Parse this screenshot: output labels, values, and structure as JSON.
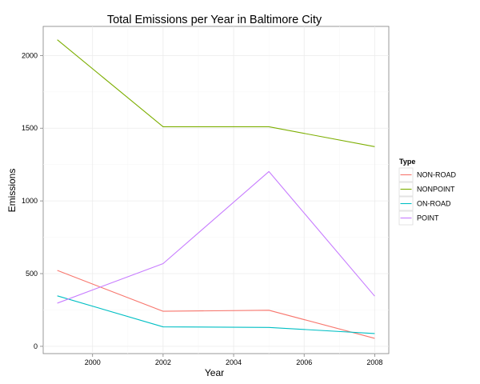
{
  "chart_data": {
    "type": "line",
    "title": "Total Emissions per Year in Baltimore City",
    "xlabel": "Year",
    "ylabel": "Emissions",
    "x": [
      1999,
      2002,
      2005,
      2008
    ],
    "xlim": [
      1998.6,
      2008.4
    ],
    "ylim": [
      -50,
      2200
    ],
    "x_ticks": [
      2000,
      2002,
      2004,
      2006,
      2008
    ],
    "y_ticks": [
      0,
      500,
      1000,
      1500,
      2000
    ],
    "grid": true,
    "legend": {
      "title": "Type",
      "placement": "right"
    },
    "series": [
      {
        "name": "NON-ROAD",
        "color": "#F8766D",
        "values": [
          522,
          241,
          248,
          55
        ]
      },
      {
        "name": "NONPOINT",
        "color": "#7CAE00",
        "values": [
          2108,
          1510,
          1510,
          1373
        ]
      },
      {
        "name": "ON-ROAD",
        "color": "#00BFC4",
        "values": [
          347,
          134,
          130,
          88
        ]
      },
      {
        "name": "POINT",
        "color": "#C77CFF",
        "values": [
          297,
          569,
          1202,
          345
        ]
      }
    ]
  }
}
